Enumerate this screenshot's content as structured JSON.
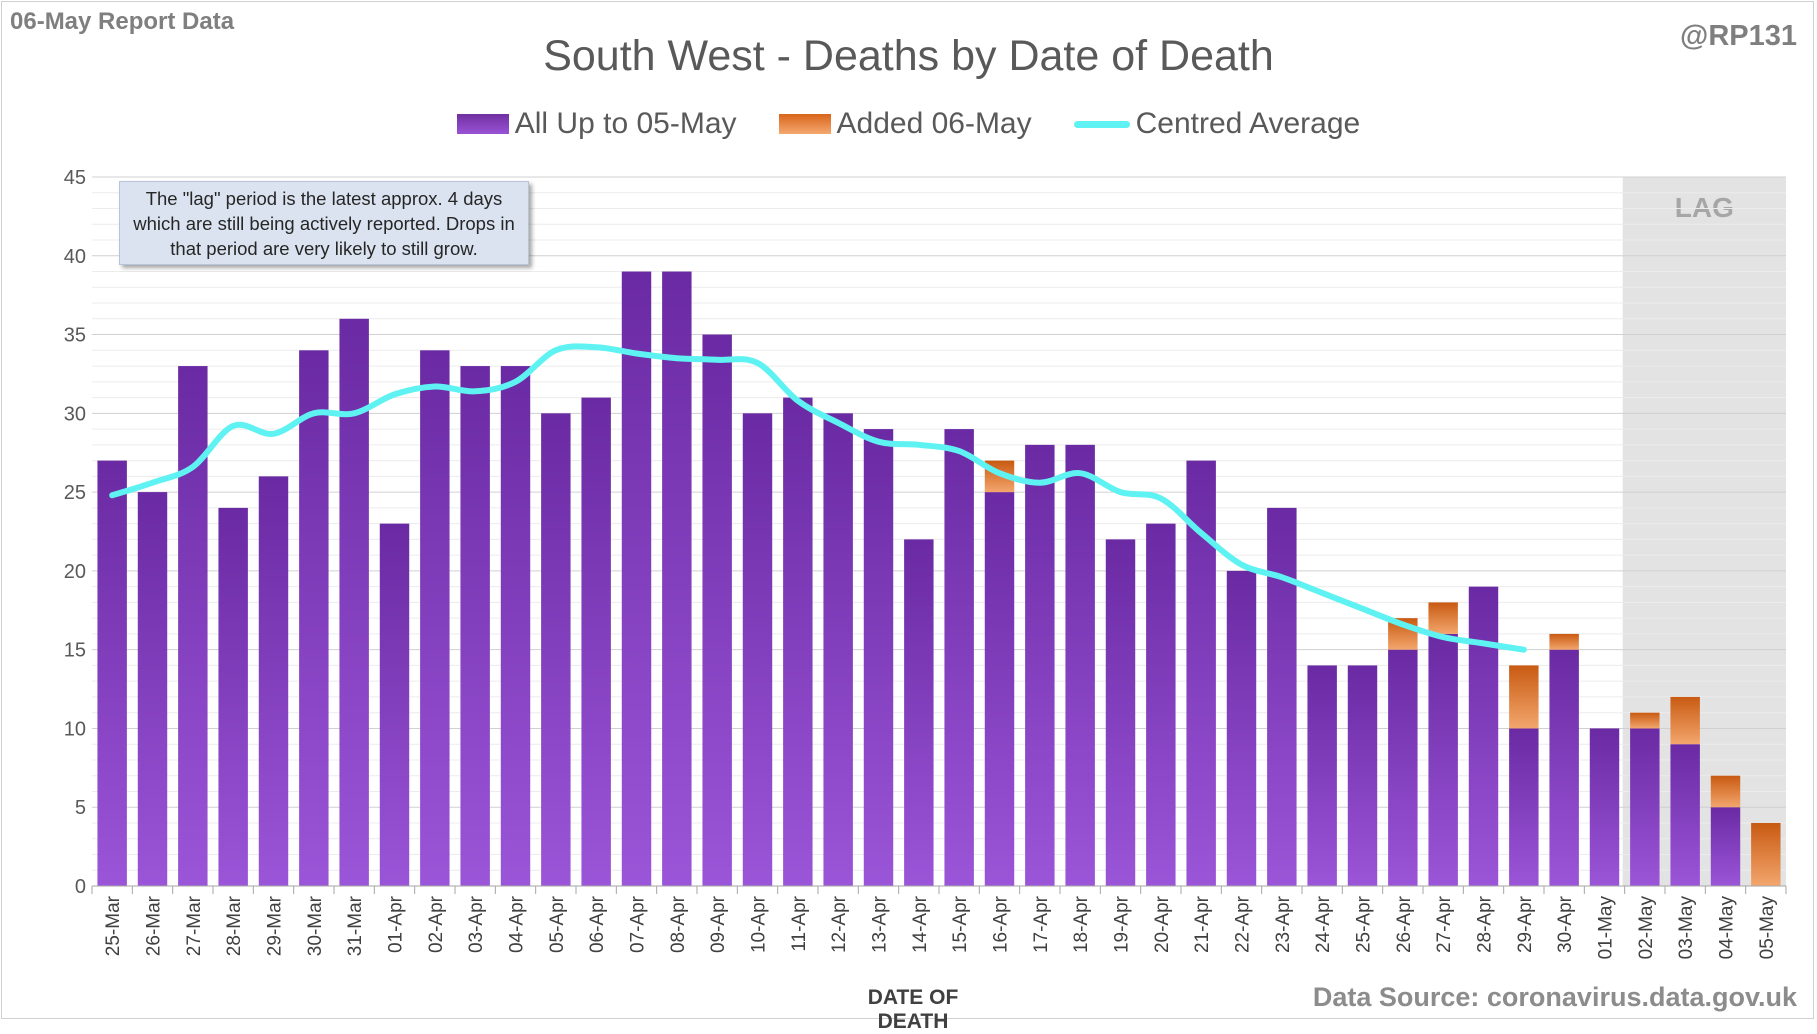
{
  "header": {
    "report_label": "06-May Report Data",
    "handle": "@RP131"
  },
  "footer": {
    "source": "Data Source: coronavirus.data.gov.uk"
  },
  "note_text": "The \"lag\" period is the latest approx. 4 days which are still being actively reported.  Drops in that period are very likely to still grow.",
  "lag_label": "LAG",
  "colors": {
    "base_bar": "#7a35b8",
    "added_bar": "#e07a30",
    "average_line": "#5ff2f2",
    "lag_shade": "#e3e3e3"
  },
  "chart_data": {
    "type": "bar",
    "stacked": true,
    "title": "South West - Deaths by Date of Death",
    "xlabel": "DATE OF DEATH",
    "ylabel": "",
    "ylim": [
      0,
      45
    ],
    "yticks": [
      0,
      5,
      10,
      15,
      20,
      25,
      30,
      35,
      40,
      45
    ],
    "grid": true,
    "legend_position": "top",
    "categories": [
      "25-Mar",
      "26-Mar",
      "27-Mar",
      "28-Mar",
      "29-Mar",
      "30-Mar",
      "31-Mar",
      "01-Apr",
      "02-Apr",
      "03-Apr",
      "04-Apr",
      "05-Apr",
      "06-Apr",
      "07-Apr",
      "08-Apr",
      "09-Apr",
      "10-Apr",
      "11-Apr",
      "12-Apr",
      "13-Apr",
      "14-Apr",
      "15-Apr",
      "16-Apr",
      "17-Apr",
      "18-Apr",
      "19-Apr",
      "20-Apr",
      "21-Apr",
      "22-Apr",
      "23-Apr",
      "24-Apr",
      "25-Apr",
      "26-Apr",
      "27-Apr",
      "28-Apr",
      "29-Apr",
      "30-Apr",
      "01-May",
      "02-May",
      "03-May",
      "04-May",
      "05-May"
    ],
    "series": [
      {
        "name": "All Up to 05-May",
        "kind": "bar",
        "values": [
          27,
          25,
          33,
          24,
          26,
          34,
          36,
          23,
          34,
          33,
          33,
          30,
          31,
          39,
          39,
          35,
          30,
          31,
          30,
          29,
          22,
          29,
          25,
          28,
          28,
          22,
          23,
          27,
          20,
          24,
          14,
          14,
          15,
          16,
          19,
          10,
          15,
          10,
          10,
          9,
          5,
          0
        ]
      },
      {
        "name": "Added 06-May",
        "kind": "bar",
        "values": [
          0,
          0,
          0,
          0,
          0,
          0,
          0,
          0,
          0,
          0,
          0,
          0,
          0,
          0,
          0,
          0,
          0,
          0,
          0,
          0,
          0,
          0,
          2,
          0,
          0,
          0,
          0,
          0,
          0,
          0,
          0,
          0,
          2,
          2,
          0,
          4,
          1,
          0,
          1,
          3,
          2,
          4
        ]
      },
      {
        "name": "Centred Average",
        "kind": "line",
        "values": [
          24.8,
          25.6,
          26.6,
          29.2,
          28.7,
          30.0,
          30.0,
          31.2,
          31.7,
          31.4,
          32.0,
          34.0,
          34.2,
          33.8,
          33.5,
          33.4,
          33.2,
          30.8,
          29.4,
          28.2,
          28.0,
          27.6,
          26.2,
          25.6,
          26.2,
          25.0,
          24.6,
          22.4,
          20.4,
          19.6,
          18.6,
          17.6,
          16.6,
          15.8,
          15.4,
          15.0,
          null,
          null,
          null,
          null,
          null,
          null
        ]
      }
    ],
    "lag_period": [
      "02-May",
      "05-May"
    ]
  }
}
